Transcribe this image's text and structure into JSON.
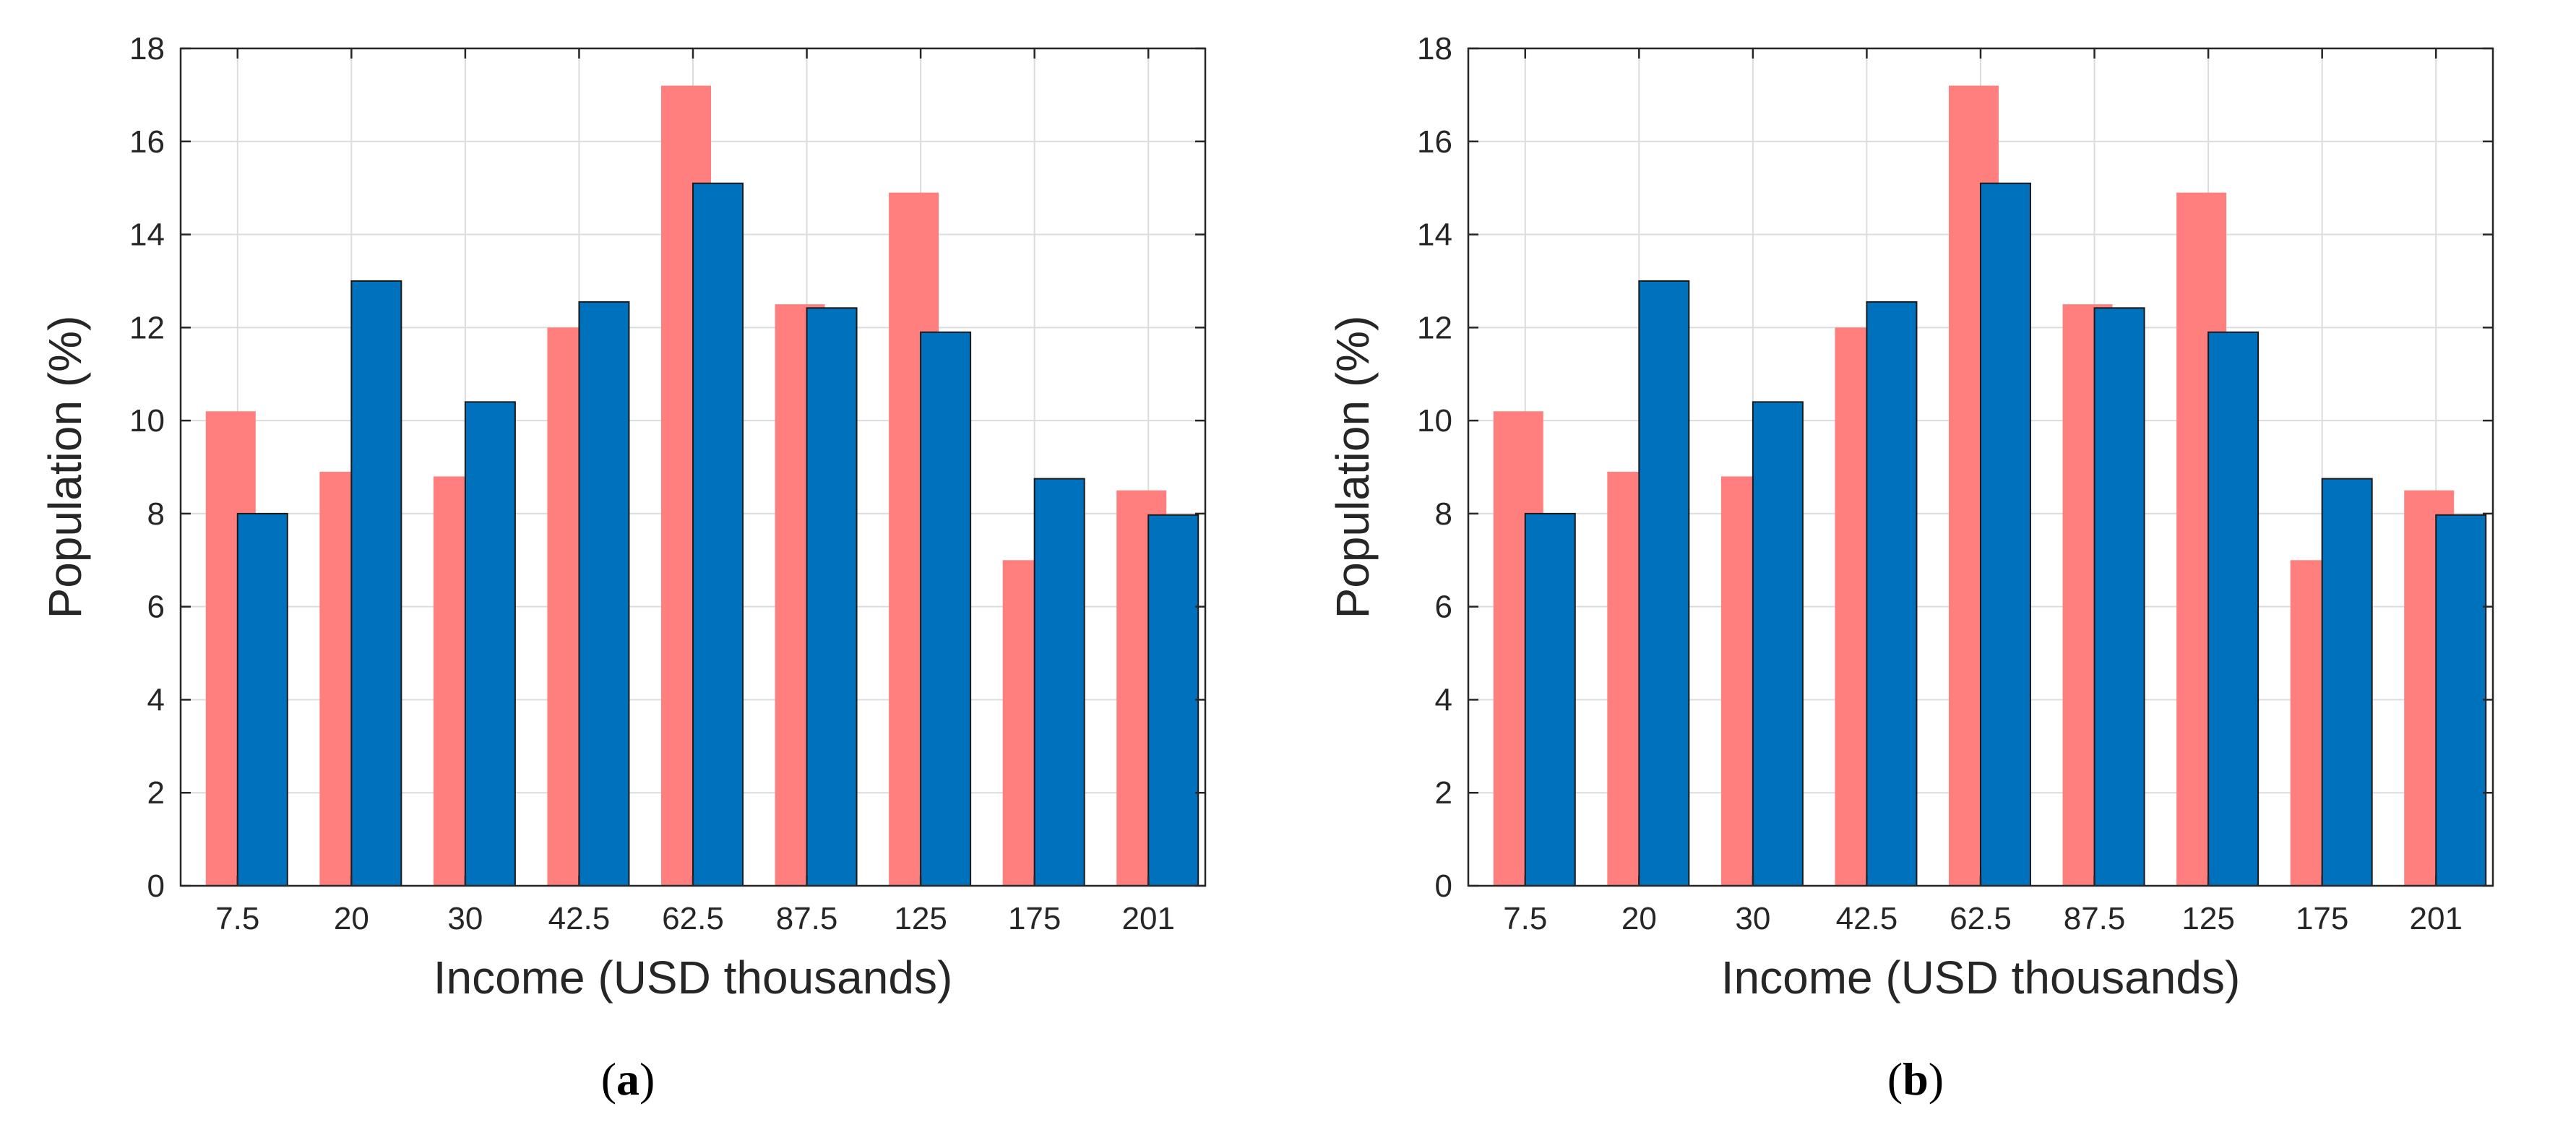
{
  "chart_data": [
    {
      "type": "bar",
      "caption": "a",
      "title": "",
      "xlabel": "Income (USD thousands)",
      "ylabel": "Population (%)",
      "ylim": [
        0,
        18
      ],
      "yticks": [
        0,
        2,
        4,
        6,
        8,
        10,
        12,
        14,
        16,
        18
      ],
      "grid": true,
      "categories": [
        "7.5",
        "20",
        "30",
        "42.5",
        "62.5",
        "87.5",
        "125",
        "175",
        "201"
      ],
      "series": [
        {
          "name": "series-1",
          "color": "#ff7f7f",
          "values": [
            10.2,
            8.9,
            8.8,
            12.0,
            17.2,
            12.5,
            14.9,
            7.0,
            8.5
          ]
        },
        {
          "name": "series-2",
          "color": "#0072bd",
          "values": [
            8.0,
            13.0,
            10.4,
            12.55,
            15.1,
            12.42,
            11.9,
            8.75,
            7.97
          ]
        }
      ]
    },
    {
      "type": "bar",
      "caption": "b",
      "title": "",
      "xlabel": "Income (USD thousands)",
      "ylabel": "Population (%)",
      "ylim": [
        0,
        18
      ],
      "yticks": [
        0,
        2,
        4,
        6,
        8,
        10,
        12,
        14,
        16,
        18
      ],
      "grid": true,
      "categories": [
        "7.5",
        "20",
        "30",
        "42.5",
        "62.5",
        "87.5",
        "125",
        "175",
        "201"
      ],
      "series": [
        {
          "name": "series-1",
          "color": "#ff7f7f",
          "values": [
            10.2,
            8.9,
            8.8,
            12.0,
            17.2,
            12.5,
            14.9,
            7.0,
            8.5
          ]
        },
        {
          "name": "series-2",
          "color": "#0072bd",
          "values": [
            8.0,
            13.0,
            10.4,
            12.55,
            15.1,
            12.42,
            11.9,
            8.75,
            7.97
          ]
        }
      ]
    }
  ]
}
